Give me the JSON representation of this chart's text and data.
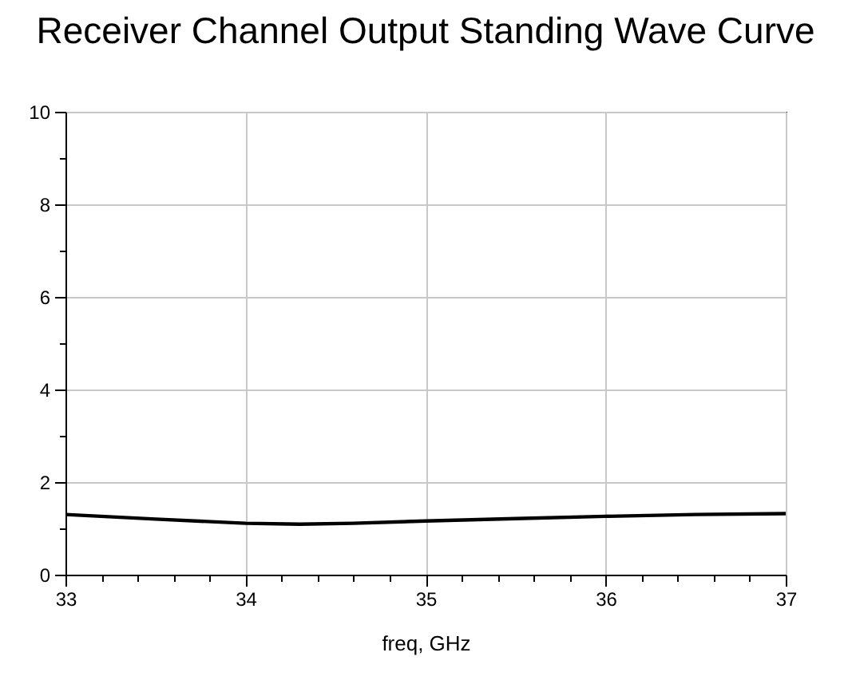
{
  "chart_data": {
    "type": "line",
    "title": "Receiver Channel Output Standing Wave Curve",
    "xlabel": "freq, GHz",
    "series": [
      {
        "color": "#000000",
        "x": [
          33,
          33.5,
          34,
          34.3,
          34.6,
          35,
          35.5,
          36,
          36.5,
          37
        ],
        "values": [
          1.3,
          1.2,
          1.11,
          1.09,
          1.11,
          1.16,
          1.21,
          1.26,
          1.3,
          1.32
        ]
      }
    ],
    "xlim": [
      33,
      37
    ],
    "ylim": [
      0,
      10
    ],
    "xticks": [
      33,
      {
        "value": 33.2,
        "label": null
      },
      {
        "value": 33.4,
        "label": null
      },
      {
        "value": 33.6,
        "label": null
      },
      {
        "value": 33.8,
        "label": null
      },
      34,
      {
        "value": 34.2,
        "label": null
      },
      {
        "value": 34.4,
        "label": null
      },
      {
        "value": 34.6,
        "label": null
      },
      {
        "value": 34.8,
        "label": null
      },
      35,
      {
        "value": 35.2,
        "label": null
      },
      {
        "value": 35.4,
        "label": null
      },
      {
        "value": 35.6,
        "label": null
      },
      {
        "value": 35.8,
        "label": null
      },
      36,
      {
        "value": 36.2,
        "label": null
      },
      {
        "value": 36.4,
        "label": null
      },
      {
        "value": 36.6,
        "label": null
      },
      {
        "value": 36.8,
        "label": null
      },
      37
    ],
    "yticks": [
      0,
      {
        "value": 1,
        "label": null
      },
      2,
      {
        "value": 3,
        "label": null
      },
      4,
      {
        "value": 5,
        "label": null
      },
      6,
      {
        "value": 7,
        "label": null
      },
      8,
      {
        "value": 9,
        "label": null
      },
      10
    ],
    "grid": true,
    "marker": "none",
    "line_style": "solid"
  }
}
